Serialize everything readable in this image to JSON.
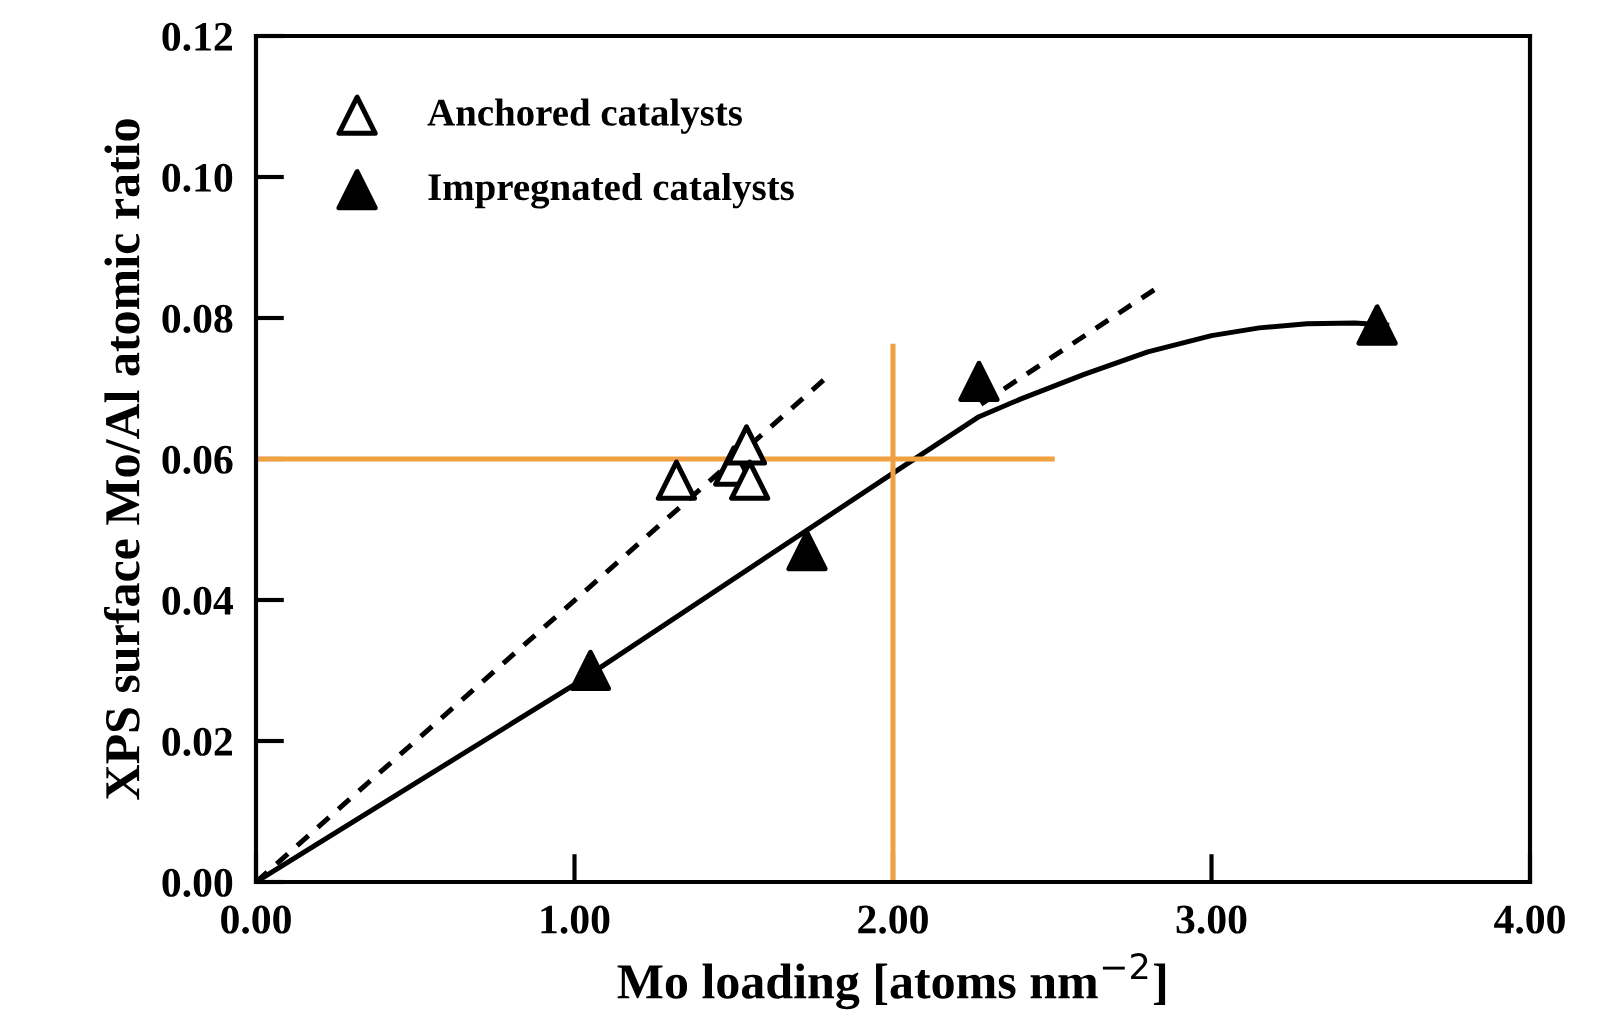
{
  "chart_data": {
    "type": "scatter",
    "xlabel": "Mo loading [atoms nm$^{−2}$]",
    "ylabel": "XPS surface Mo/Al atomic ratio",
    "xlim": [
      0,
      4
    ],
    "ylim": [
      0,
      0.12
    ],
    "xticks": [
      {
        "value": 0,
        "label": "0.00"
      },
      {
        "value": 1,
        "label": "1.00"
      },
      {
        "value": 2,
        "label": "2.00"
      },
      {
        "value": 3,
        "label": "3.00"
      },
      {
        "value": 4,
        "label": "4.00"
      }
    ],
    "yticks": [
      {
        "value": 0,
        "label": "0.00"
      },
      {
        "value": 0.02,
        "label": "0.02"
      },
      {
        "value": 0.04,
        "label": "0.04"
      },
      {
        "value": 0.06,
        "label": "0.06"
      },
      {
        "value": 0.08,
        "label": "0.08"
      },
      {
        "value": 0.1,
        "label": "0.10"
      },
      {
        "value": 0.12,
        "label": "0.12"
      }
    ],
    "grid": false,
    "legend": "top left",
    "marker": "triangle",
    "series": [
      {
        "name": "Anchored catalysts",
        "color": "#ffffff",
        "x": [
          1.32,
          1.5,
          1.54,
          1.55
        ],
        "values": [
          0.057,
          0.059,
          0.062,
          0.057
        ]
      },
      {
        "name": "Impregnated catalysts",
        "color": "#000000",
        "x": [
          1.05,
          1.73,
          2.27,
          3.52
        ],
        "values": [
          0.03,
          0.047,
          0.071,
          0.079
        ]
      },
      {
        "type": "line",
        "color": "#000000",
        "line_style": "dashed",
        "marker": "none",
        "x": [
          0,
          1.79
        ],
        "values": [
          0,
          0.0715
        ]
      },
      {
        "type": "line",
        "color": "#000000",
        "line_style": "dashed",
        "marker": "none",
        "x": [
          2.82,
          2.25
        ],
        "values": [
          0.084,
          0.067
        ]
      },
      {
        "type": "line",
        "color": "#000000",
        "line_style": "solid",
        "marker": "none",
        "x": [
          0,
          1.0,
          2.0,
          2.27,
          2.4,
          2.6,
          2.8,
          3.0,
          3.15,
          3.3,
          3.45,
          3.55
        ],
        "values": [
          0,
          0.028,
          0.058,
          0.066,
          0.0685,
          0.072,
          0.0752,
          0.0775,
          0.0786,
          0.0792,
          0.0793,
          0.079
        ]
      },
      {
        "type": "line",
        "color": "#f0a040",
        "line_style": "solid",
        "marker": "none",
        "x": [
          0,
          2.5
        ],
        "values": [
          0.06,
          0.06
        ]
      },
      {
        "type": "line",
        "color": "#f0a040",
        "line_style": "solid",
        "marker": "none",
        "x": [
          2.0,
          2.0
        ],
        "values": [
          0,
          0.076
        ]
      }
    ]
  }
}
